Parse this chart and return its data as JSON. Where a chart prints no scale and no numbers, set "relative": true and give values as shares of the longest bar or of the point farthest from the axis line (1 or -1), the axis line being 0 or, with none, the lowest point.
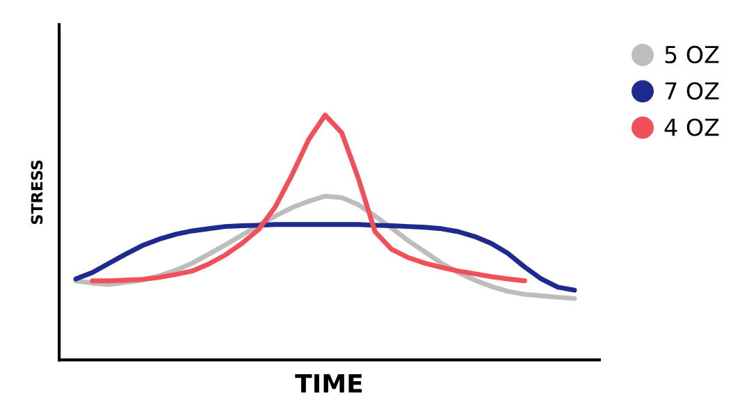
{
  "chart_data": {
    "type": "line",
    "relative": true,
    "xlabel": "TIME",
    "ylabel": "STRESS",
    "categories": [
      null,
      null,
      null,
      null,
      null,
      null,
      null,
      null,
      null,
      null,
      null,
      null,
      null,
      null,
      null,
      null,
      null,
      null,
      null,
      null,
      null,
      null,
      null,
      null,
      null,
      null,
      null,
      null,
      null,
      null,
      null
    ],
    "series": [
      {
        "name": "5 OZ",
        "color": "#bdbdbd",
        "values": [
          0.323,
          0.314,
          0.308,
          0.317,
          0.326,
          0.343,
          0.366,
          0.395,
          0.432,
          0.47,
          0.51,
          0.55,
          0.588,
          0.622,
          0.648,
          0.669,
          0.663,
          0.634,
          0.588,
          0.539,
          0.487,
          0.441,
          0.395,
          0.357,
          0.326,
          0.3,
          0.28,
          0.268,
          0.262,
          0.256,
          0.251
        ]
      },
      {
        "name": "7 OZ",
        "color": "#1f2a8f",
        "values": [
          0.331,
          0.357,
          0.395,
          0.432,
          0.467,
          0.493,
          0.513,
          0.527,
          0.536,
          0.545,
          0.548,
          0.55,
          0.553,
          0.553,
          0.553,
          0.553,
          0.553,
          0.553,
          0.55,
          0.548,
          0.545,
          0.542,
          0.536,
          0.524,
          0.504,
          0.476,
          0.435,
          0.38,
          0.331,
          0.297,
          0.285
        ]
      },
      {
        "name": "4 OZ",
        "color": "#f0505a",
        "values": [
          null,
          0.323,
          0.323,
          0.326,
          0.329,
          0.337,
          0.349,
          0.363,
          0.392,
          0.429,
          0.476,
          0.533,
          0.625,
          0.755,
          0.899,
          1.0,
          0.928,
          0.741,
          0.524,
          0.452,
          0.418,
          0.395,
          0.378,
          0.363,
          0.352,
          0.34,
          0.331,
          0.323,
          null,
          null,
          null
        ]
      }
    ],
    "marker": "none",
    "line_style": "solid",
    "legend": "top right",
    "tick_labels": false
  }
}
